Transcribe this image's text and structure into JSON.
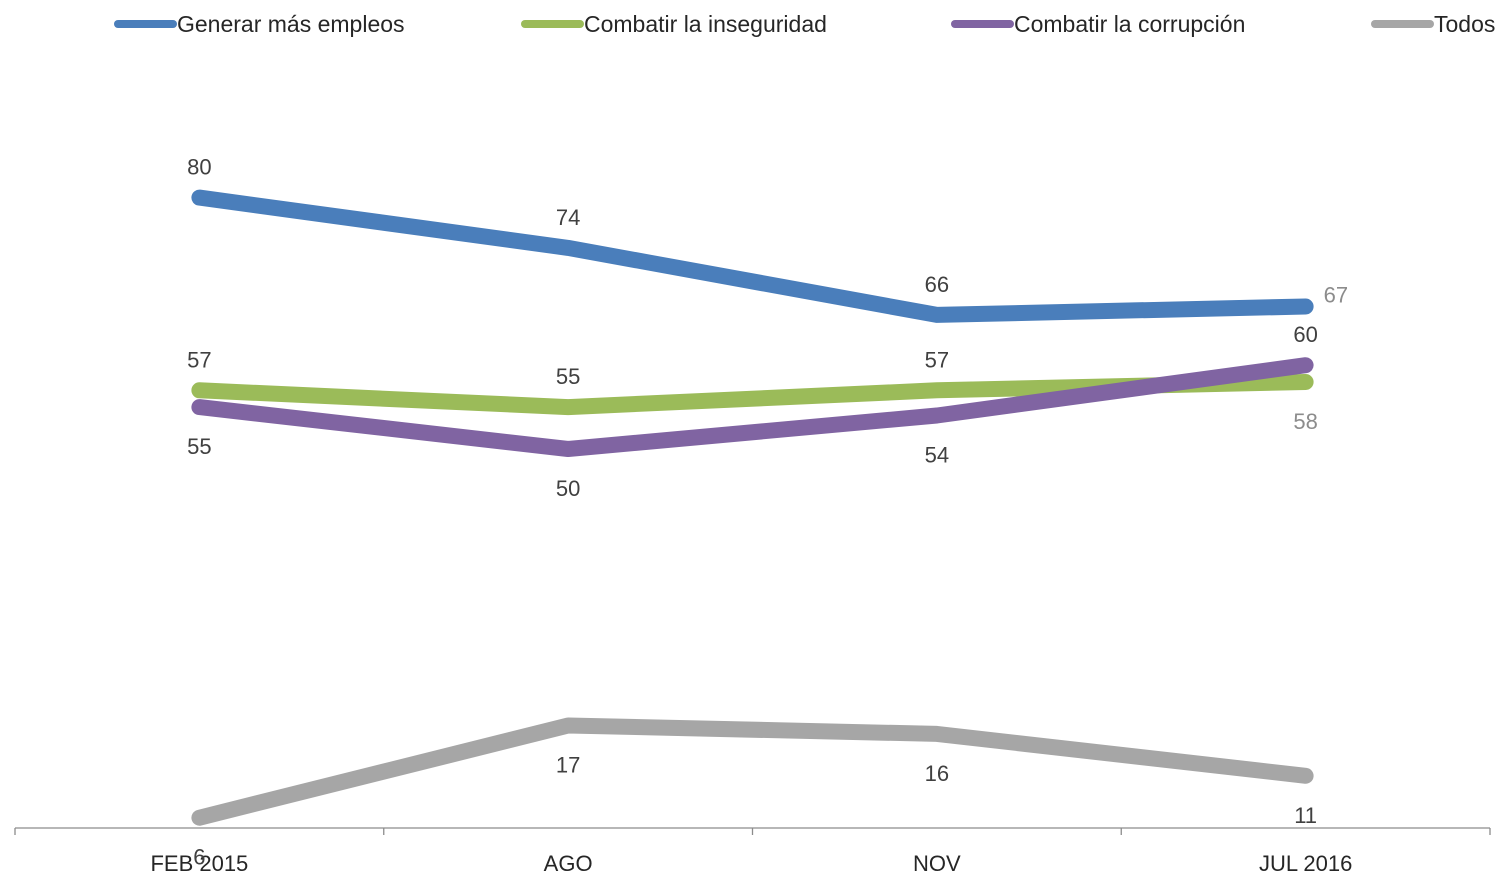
{
  "chart_data": {
    "type": "line",
    "categories": [
      "FEB 2015",
      "AGO",
      "NOV",
      "JUL 2016"
    ],
    "ylim": [
      0,
      100
    ],
    "grid": false,
    "legend": "top",
    "series": [
      {
        "name": "Generar más empleos",
        "color": "#4A7EBB",
        "label_color": "#404040",
        "values": [
          80,
          74,
          66,
          67
        ],
        "label_pos": [
          "above",
          "above",
          "above",
          "right"
        ],
        "label_grey": [
          false,
          false,
          false,
          true
        ]
      },
      {
        "name": "Combatir la inseguridad",
        "color": "#9BBB59",
        "label_color": "#404040",
        "values": [
          57,
          55,
          57,
          58
        ],
        "label_pos": [
          "above",
          "above",
          "above",
          "below"
        ],
        "label_grey": [
          false,
          false,
          false,
          true
        ]
      },
      {
        "name": "Combatir la corrupción",
        "color": "#8064A2",
        "label_color": "#404040",
        "values": [
          55,
          50,
          54,
          60
        ],
        "label_pos": [
          "below",
          "below",
          "below",
          "above"
        ],
        "label_grey": [
          false,
          false,
          false,
          false
        ]
      },
      {
        "name": "Todos",
        "color": "#A6A6A6",
        "label_color": "#404040",
        "values": [
          6,
          17,
          16,
          11
        ],
        "label_pos": [
          "below",
          "below",
          "below",
          "below"
        ],
        "label_grey": [
          false,
          false,
          false,
          false
        ]
      }
    ],
    "grey_label_color": "#8C8C8C"
  }
}
